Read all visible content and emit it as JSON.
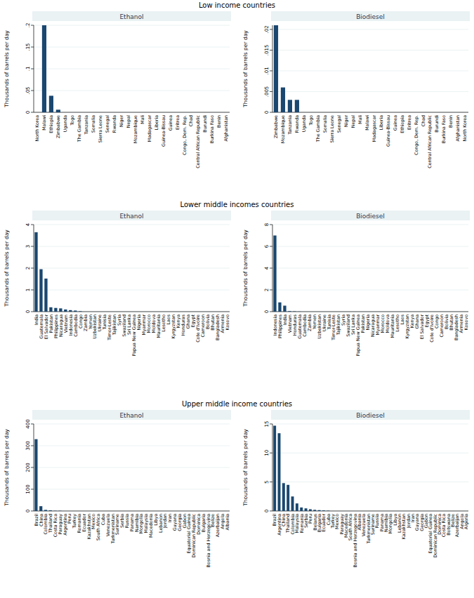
{
  "headings": [
    "Low income countries",
    "Lower middle incomes countries",
    "Upper middle income countries"
  ],
  "chart_data": [
    {
      "type": "bar",
      "title": "Ethanol",
      "ylabel": "Thousands of barrels per day",
      "color": "#1a476f",
      "grid": true,
      "categories": [
        "North Korea",
        "Malawi",
        "Ethiopia",
        "Zimbabwe",
        "Uganda",
        "Togo",
        "The Gambia",
        "Tanzania",
        "Somalia",
        "Sierra Leone",
        "Senegal",
        "Rwanda",
        "Niger",
        "Nepal",
        "Mozambique",
        "Mali",
        "Madagascar",
        "Liberia",
        "Guinea-Bissau",
        "Guinea",
        "Eritrea",
        "Congo, Dem. Rep.",
        "Chad",
        "Central African Republic",
        "Burundi",
        "Burkina Faso",
        "Benin",
        "Afghanistan"
      ],
      "values": [
        0,
        0.2,
        0.038,
        0.006,
        0,
        0,
        0,
        0,
        0,
        0,
        0,
        0,
        0,
        0,
        0,
        0,
        0,
        0,
        0,
        0,
        0,
        0,
        0,
        0,
        0,
        0,
        0,
        0
      ],
      "ylim": [
        0,
        0.2
      ],
      "yticks": [
        0,
        {
          "value": 0.05,
          "label": ".05"
        },
        {
          "value": 0.1,
          "label": ".1"
        },
        {
          "value": 0.15,
          "label": ".15"
        },
        {
          "value": 0.2,
          "label": ".2"
        }
      ]
    },
    {
      "type": "bar",
      "title": "Biodiesel",
      "ylabel": "Thousands of barrels per day",
      "color": "#1a476f",
      "grid": true,
      "categories": [
        "Zimbabwe",
        "Mozambique",
        "Tanzania",
        "Rwanda",
        "Uganda",
        "Togo",
        "The Gambia",
        "Somalia",
        "Sierra Leone",
        "Senegal",
        "Niger",
        "Nepal",
        "Mali",
        "Malawi",
        "Madagascar",
        "Liberia",
        "Guinea-Bissau",
        "Guinea",
        "Ethiopia",
        "Eritrea",
        "Congo, Dem. Rep.",
        "Chad",
        "Central African Republic",
        "Burundi",
        "Burkina Faso",
        "Benin",
        "Afghanistan",
        "North Korea"
      ],
      "values": [
        0.021,
        0.006,
        0.003,
        0.003,
        0,
        0,
        0,
        0,
        0,
        0,
        0,
        0,
        0,
        0,
        0,
        0,
        0,
        0,
        0,
        0,
        0,
        0,
        0,
        0,
        0,
        0,
        0,
        0
      ],
      "ylim": [
        0,
        0.021
      ],
      "yticks": [
        0,
        {
          "value": 0.005,
          "label": ".005"
        },
        {
          "value": 0.01,
          "label": ".01"
        },
        {
          "value": 0.015,
          "label": ".015"
        },
        {
          "value": 0.02,
          "label": ".02"
        }
      ]
    },
    {
      "type": "bar",
      "title": "Ethanol",
      "ylabel": "Thousands of barrels per day",
      "color": "#1a476f",
      "grid": true,
      "categories": [
        "India",
        "Guatemala",
        "El Salvador",
        "Pakistan",
        "Philippines",
        "Nicaragua",
        "Vietnam",
        "Indonesia",
        "Cambodia",
        "Congo",
        "Zambia",
        "Yemen",
        "Uzbekistan",
        "Ukraine",
        "Tunisia",
        "Timor-Leste",
        "Tajikistan",
        "Syria",
        "Swaziland",
        "Sri Lanka",
        "Papua New Guinea",
        "Nigeria",
        "Myanmar",
        "Morocco",
        "Moldova",
        "Mauritania",
        "Lesotho",
        "Laos",
        "Kyrgyzstan",
        "Kenya",
        "Honduras",
        "Ghana",
        "Egypt",
        "Cote d'Ivoire",
        "Cameroon",
        "Bolivia",
        "Bhutan",
        "Bangladesh",
        "Armenia",
        "Kosovo"
      ],
      "values": [
        3.65,
        1.95,
        1.52,
        0.2,
        0.17,
        0.15,
        0.1,
        0.07,
        0.05,
        0.02,
        0,
        0,
        0,
        0,
        0,
        0,
        0,
        0,
        0,
        0,
        0,
        0,
        0,
        0,
        0,
        0,
        0,
        0,
        0,
        0,
        0,
        0,
        0,
        0,
        0,
        0,
        0,
        0,
        0,
        0
      ],
      "ylim": [
        0,
        4
      ],
      "yticks": [
        0,
        1,
        2,
        3,
        4
      ]
    },
    {
      "type": "bar",
      "title": "Biodiesel",
      "ylabel": "Thousands of barrels per day",
      "color": "#1a476f",
      "grid": true,
      "categories": [
        "Indonesia",
        "Philippines",
        "India",
        "Vietnam",
        "Honduras",
        "Guatemala",
        "Cambodia",
        "Zambia",
        "Yemen",
        "Uzbekistan",
        "Ukraine",
        "Tunisia",
        "Timor-Leste",
        "Tajikistan",
        "Syria",
        "Swaziland",
        "Sri Lanka",
        "Papua New Guinea",
        "Pakistan",
        "Nigeria",
        "Nicaragua",
        "Myanmar",
        "Morocco",
        "Moldova",
        "Mauritania",
        "Lesotho",
        "Laos",
        "Kyrgyzstan",
        "Kenya",
        "Ghana",
        "El Salvador",
        "Egypt",
        "Cote d'Ivoire",
        "Congo",
        "Cameroon",
        "Bolivia",
        "Bhutan",
        "Bangladesh",
        "Armenia",
        "Kosovo"
      ],
      "values": [
        7.0,
        0.85,
        0.55,
        0.05,
        0.03,
        0.01,
        0,
        0,
        0,
        0,
        0,
        0,
        0,
        0,
        0,
        0,
        0,
        0,
        0,
        0,
        0,
        0,
        0,
        0,
        0,
        0,
        0,
        0,
        0,
        0,
        0,
        0,
        0,
        0,
        0,
        0,
        0,
        0,
        0,
        0
      ],
      "ylim": [
        0,
        8
      ],
      "yticks": [
        0,
        2,
        4,
        6,
        8
      ]
    },
    {
      "type": "bar",
      "title": "Ethanol",
      "ylabel": "Thousands of barrels per day",
      "color": "#1a476f",
      "grid": true,
      "categories": [
        "Brazil",
        "China",
        "Colombia",
        "Thailand",
        "Costa Rica",
        "Paraguay",
        "Argentina",
        "Peru",
        "Turkey",
        "Romania",
        "Ecuador",
        "Kazakhstan",
        "Mexico",
        "South Africa",
        "Cuba",
        "Venezuela",
        "Turkmenistan",
        "Suriname",
        "Serbia",
        "Russia",
        "Panama",
        "Namibia",
        "Mongolia",
        "Malaysia",
        "Macedonia",
        "Libya",
        "Lebanon",
        "Jordan",
        "Iran",
        "Guyana",
        "Georgia",
        "Gabon",
        "Equatorial Guinea",
        "Dominican Republic",
        "Dominica",
        "Bulgaria",
        "Bosnia and Herzegovina",
        "Belize",
        "Azerbaijan",
        "Angola",
        "Albania"
      ],
      "values": [
        330,
        22,
        5,
        3,
        1,
        1,
        0,
        0,
        0,
        0,
        0,
        0,
        0,
        0,
        0,
        0,
        0,
        0,
        0,
        0,
        0,
        0,
        0,
        0,
        0,
        0,
        0,
        0,
        0,
        0,
        0,
        0,
        0,
        0,
        0,
        0,
        0,
        0,
        0,
        0,
        0
      ],
      "ylim": [
        0,
        400
      ],
      "yticks": [
        0,
        100,
        200,
        300,
        400
      ]
    },
    {
      "type": "bar",
      "title": "Biodiesel",
      "ylabel": "Thousands of barrels per day",
      "color": "#1a476f",
      "grid": true,
      "categories": [
        "Brazil",
        "Argentina",
        "China",
        "Thailand",
        "Colombia",
        "Malaysia",
        "Romania",
        "Serbia",
        "Peru",
        "Belarus",
        "Bulgaria",
        "Ecuador",
        "Cuba",
        "Turkey",
        "Mexico",
        "Paraguay",
        "Macedonia",
        "South Africa",
        "Bosnia and Herzegovina",
        "Albania",
        "Venezuela",
        "Turkmenistan",
        "Suriname",
        "Russia",
        "Panama",
        "Namibia",
        "Mongolia",
        "Libya",
        "Lebanon",
        "Kazakhstan",
        "Jordan",
        "Iran",
        "Guyana",
        "Georgia",
        "Gabon",
        "Equatorial Guinea",
        "Dominican Republic",
        "Dominica",
        "Costa Rica",
        "Botswana",
        "Belize",
        "Azerbaijan",
        "Angola",
        "Algeria"
      ],
      "values": [
        14.7,
        13.4,
        4.8,
        4.5,
        2.5,
        1.3,
        0.6,
        0.45,
        0.3,
        0.2,
        0.15,
        0.1,
        0.05,
        0,
        0,
        0,
        0,
        0,
        0,
        0,
        0,
        0,
        0,
        0,
        0,
        0,
        0,
        0,
        0,
        0,
        0,
        0,
        0,
        0,
        0,
        0,
        0,
        0,
        0,
        0,
        0,
        0,
        0,
        0
      ],
      "ylim": [
        0,
        15
      ],
      "yticks": [
        0,
        5,
        10,
        15
      ]
    }
  ]
}
